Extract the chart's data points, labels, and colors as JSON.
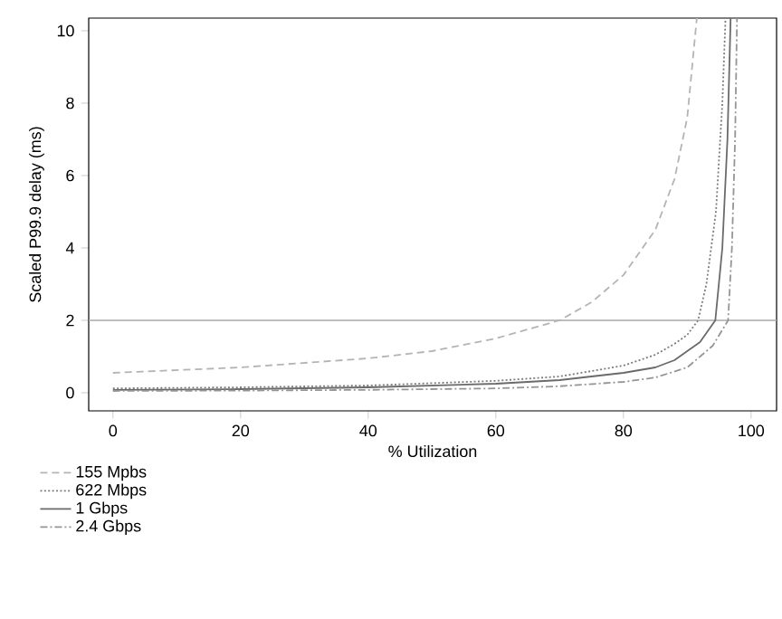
{
  "chart_data": {
    "type": "line",
    "xlabel": "% Utilization",
    "ylabel": "Scaled P99.9 delay (ms)",
    "xlim": [
      -3.8,
      104
    ],
    "ylim": [
      -0.5,
      10.35
    ],
    "xticks": [
      0,
      20,
      40,
      60,
      80,
      100
    ],
    "yticks": [
      0,
      2,
      4,
      6,
      8,
      10
    ],
    "grid": false,
    "legend": "bottom",
    "marker": "none",
    "ref_lines": [
      {
        "axis": "y",
        "value": 2,
        "color": "#a8a8a8"
      }
    ],
    "series": [
      {
        "name": "155 Mpbs",
        "color": "#b4b4b4",
        "line_style": "dashed",
        "x": [
          0,
          20,
          40,
          50,
          60,
          65,
          70,
          75,
          80,
          85,
          88,
          90,
          91.5
        ],
        "values": [
          0.55,
          0.7,
          0.95,
          1.15,
          1.5,
          1.75,
          2.0,
          2.5,
          3.25,
          4.5,
          5.9,
          7.6,
          10.35
        ]
      },
      {
        "name": "622 Mbps",
        "color": "#7c7c7c",
        "line_style": "dotted",
        "x": [
          0,
          20,
          40,
          60,
          70,
          80,
          85,
          88,
          90,
          91.7,
          93,
          94.5,
          95.5,
          96
        ],
        "values": [
          0.12,
          0.15,
          0.2,
          0.33,
          0.45,
          0.75,
          1.05,
          1.35,
          1.6,
          2.0,
          3.0,
          5.0,
          8.0,
          10.35
        ]
      },
      {
        "name": "1 Gbps",
        "color": "#6a6a6a",
        "line_style": "solid",
        "x": [
          0,
          20,
          40,
          60,
          70,
          80,
          85,
          88,
          92,
          94.4,
          95.5,
          96.3,
          96.8
        ],
        "values": [
          0.08,
          0.1,
          0.15,
          0.25,
          0.35,
          0.55,
          0.7,
          0.9,
          1.4,
          2.0,
          4.0,
          7.0,
          10.35
        ]
      },
      {
        "name": "2.4 Gbps",
        "color": "#959595",
        "line_style": "dashdot",
        "x": [
          0,
          20,
          40,
          60,
          70,
          80,
          85,
          90,
          94,
          96.4,
          97,
          97.5,
          97.8
        ],
        "values": [
          0.05,
          0.06,
          0.08,
          0.12,
          0.18,
          0.3,
          0.42,
          0.7,
          1.3,
          2.0,
          4.0,
          7.0,
          10.35
        ]
      }
    ]
  }
}
